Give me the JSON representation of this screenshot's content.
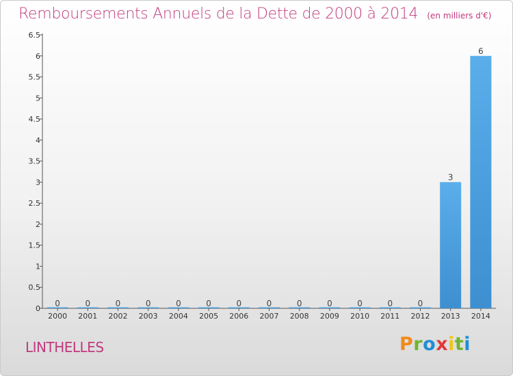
{
  "chart_data": {
    "type": "bar",
    "title": "Remboursements Annuels de la Dette de 2000 à 2014",
    "subtitle": "(en milliers d'€)",
    "categories": [
      "2000",
      "2001",
      "2002",
      "2003",
      "2004",
      "2005",
      "2006",
      "2007",
      "2008",
      "2009",
      "2010",
      "2011",
      "2012",
      "2013",
      "2014"
    ],
    "values": [
      0,
      0,
      0,
      0,
      0,
      0,
      0,
      0,
      0,
      0,
      0,
      0,
      0,
      3,
      6
    ],
    "value_labels": [
      "0",
      "0",
      "0",
      "0",
      "0",
      "0",
      "0",
      "0",
      "0",
      "0",
      "0",
      "0",
      "0",
      "3",
      "6"
    ],
    "ylim": [
      0,
      6.5
    ],
    "yticks": [
      0,
      0.5,
      1,
      1.5,
      2,
      2.5,
      3,
      3.5,
      4,
      4.5,
      5,
      5.5,
      6,
      6.5
    ],
    "ytick_labels": [
      "0",
      "0.5",
      "1",
      "1.5",
      "2",
      "2.5",
      "3",
      "3.5",
      "4",
      "4.5",
      "5",
      "5.5",
      "6",
      "6.5"
    ],
    "grid": false,
    "bar_color": "#3d8fd0"
  },
  "footer": {
    "commune": "LINTHELLES",
    "brand": "Proxiti",
    "brand_colors": [
      "#f08a1c",
      "#6fb530",
      "#1e8fd6",
      "#e03a3a",
      "#f0c419",
      "#6fb530",
      "#1e8fd6"
    ]
  }
}
